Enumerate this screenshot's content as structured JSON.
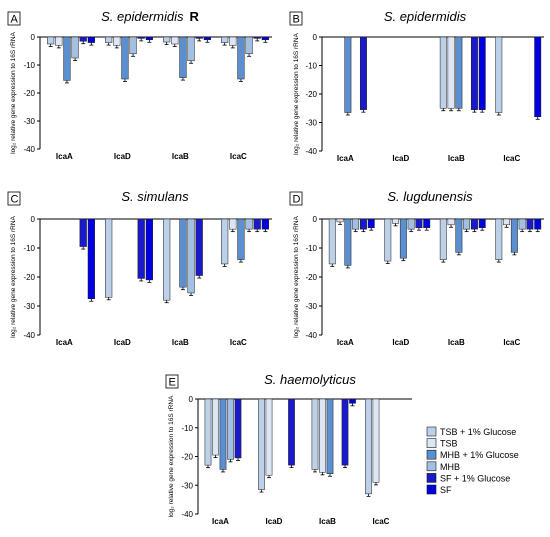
{
  "legend": [
    {
      "label": "TSB + 1% Glucose",
      "color": "#bcd0ea"
    },
    {
      "label": "TSB",
      "color": "#dde6f4"
    },
    {
      "label": "MHB + 1% Glucose",
      "color": "#5b8fd0"
    },
    {
      "label": "MHB",
      "color": "#a2bfe4"
    },
    {
      "label": "SF + 1% Glucose",
      "color": "#1a1ac8"
    },
    {
      "label": "SF",
      "color": "#0000e0"
    }
  ],
  "chart_data": [
    {
      "panel": "A",
      "type": "bar",
      "title": "S. epidermidis",
      "title_suffix": "R",
      "ylabel": "log₂ relative gene expression to 16S rRNA",
      "ylim": [
        -40,
        0
      ],
      "yticks": [
        "0",
        "-10",
        "-20",
        "-30",
        "-40"
      ],
      "categories": [
        "IcaA",
        "IcaD",
        "IcaB",
        "IcaC"
      ],
      "values": [
        [
          -2.5,
          -3,
          -15.5,
          -7.5,
          -1.5,
          -2
        ],
        [
          -2,
          -3,
          -15,
          -6,
          -0.5,
          -1
        ],
        [
          -1.8,
          -2.5,
          -14.5,
          -8.5,
          -0.5,
          -1
        ],
        [
          -2,
          -3,
          -15,
          -6,
          -0.5,
          -1
        ]
      ]
    },
    {
      "panel": "B",
      "type": "bar",
      "title": "S. epidermidis",
      "title_suffix": "",
      "ylabel": "log₂ relative gene expression to 16S rRNA",
      "ylim": [
        -40,
        0
      ],
      "yticks": [
        "0",
        "-10",
        "-20",
        "-30",
        "-40"
      ],
      "categories": [
        "IcaA",
        "IcaD",
        "IcaB",
        "IcaC"
      ],
      "values": [
        [
          null,
          null,
          -26.5,
          null,
          -25.5,
          null
        ],
        [
          null,
          null,
          null,
          null,
          null,
          null
        ],
        [
          -25,
          -25,
          -25,
          null,
          -25.5,
          -25.5
        ],
        [
          -26.5,
          null,
          null,
          null,
          null,
          -28
        ]
      ]
    },
    {
      "panel": "C",
      "type": "bar",
      "title": "S. simulans",
      "title_suffix": "",
      "ylabel": "log₂ relative gene expression to 16S rRNA",
      "ylim": [
        -40,
        0
      ],
      "yticks": [
        "0",
        "-10",
        "-20",
        "-30",
        "-40"
      ],
      "categories": [
        "IcaA",
        "IcaD",
        "IcaB",
        "IcaC"
      ],
      "values": [
        [
          null,
          null,
          null,
          null,
          -9.5,
          -27.5
        ],
        [
          -27,
          null,
          null,
          null,
          -20.5,
          -21
        ],
        [
          -28,
          null,
          -23.5,
          -25.5,
          -19.5,
          null
        ],
        [
          -15.5,
          -3.5,
          -14,
          -3.5,
          -3.5,
          -3.5
        ]
      ]
    },
    {
      "panel": "D",
      "type": "bar",
      "title": "S. lugdunensis",
      "title_suffix": "",
      "ylabel": "log₂ relative gene expression to 16S rRNA",
      "ylim": [
        -40,
        0
      ],
      "yticks": [
        "0",
        "-10",
        "-20",
        "-30",
        "-40"
      ],
      "categories": [
        "IcaA",
        "IcaD",
        "IcaB",
        "IcaC"
      ],
      "values": [
        [
          -15.5,
          -1,
          -16,
          -3.5,
          -3.5,
          -3
        ],
        [
          -14.5,
          -1.5,
          -13.5,
          -3.5,
          -3,
          -3
        ],
        [
          -14,
          -2,
          -11.5,
          -3.5,
          -3.5,
          -3
        ],
        [
          -14,
          -2,
          -11.5,
          -3.5,
          -3.5,
          -3.5
        ]
      ]
    },
    {
      "panel": "E",
      "type": "bar",
      "title": "S. haemolyticus",
      "title_suffix": "",
      "ylabel": "log₂ relative gene expression to 16S rRNA",
      "ylim": [
        -40,
        0
      ],
      "yticks": [
        "0",
        "-10",
        "-20",
        "-30",
        "-40"
      ],
      "categories": [
        "IcaA",
        "IcaD",
        "IcaB",
        "IcaC"
      ],
      "values": [
        [
          -23,
          -19.5,
          -24.5,
          -21,
          -20.5,
          null
        ],
        [
          -31.5,
          -26.5,
          null,
          null,
          -23,
          null
        ],
        [
          -24.5,
          -25.5,
          -26,
          null,
          -23,
          -1.5
        ],
        [
          -33,
          -29,
          null,
          null,
          null,
          null
        ]
      ]
    }
  ]
}
